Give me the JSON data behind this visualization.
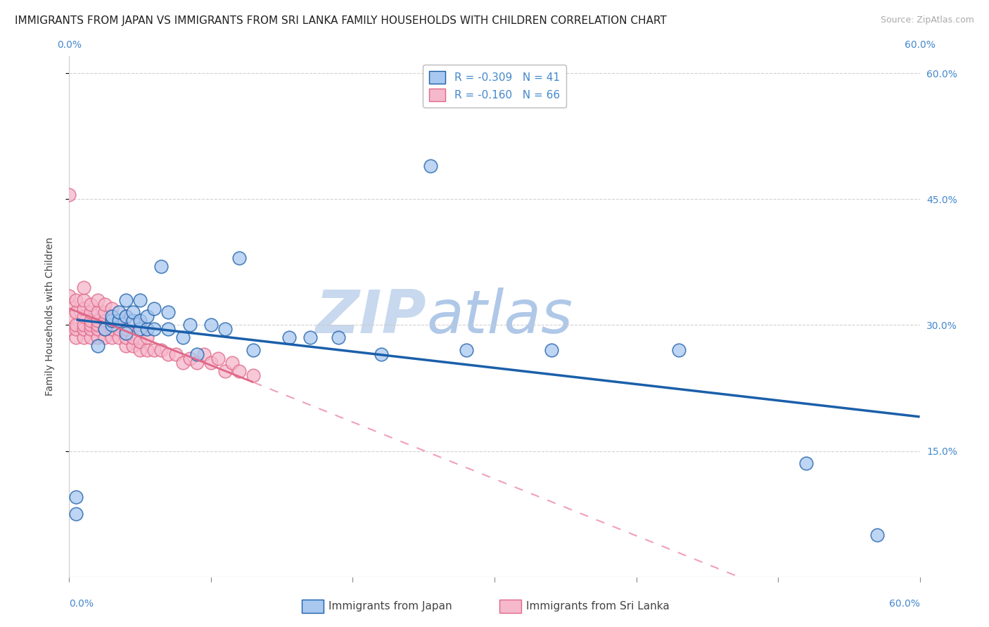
{
  "title": "IMMIGRANTS FROM JAPAN VS IMMIGRANTS FROM SRI LANKA FAMILY HOUSEHOLDS WITH CHILDREN CORRELATION CHART",
  "source": "Source: ZipAtlas.com",
  "ylabel": "Family Households with Children",
  "legend_label1": "R = -0.309   N = 41",
  "legend_label2": "R = -0.160   N = 66",
  "watermark_zip": "ZIP",
  "watermark_atlas": "atlas",
  "legend_xlabel1": "Immigrants from Japan",
  "legend_xlabel2": "Immigrants from Sri Lanka",
  "xlim": [
    0.0,
    0.6
  ],
  "ylim": [
    0.0,
    0.62
  ],
  "ytick_vals": [
    0.15,
    0.3,
    0.45,
    0.6
  ],
  "yticklabels_right": [
    "15.0%",
    "30.0%",
    "45.0%",
    "60.0%"
  ],
  "color_japan": "#a8c8f0",
  "color_japan_line": "#1a5faa",
  "color_srilanka": "#f5b8cc",
  "color_srilanka_line": "#e06888",
  "color_srilanka_line_dashed": "#f0a0b8",
  "japan_x": [
    0.005,
    0.005,
    0.02,
    0.025,
    0.03,
    0.03,
    0.03,
    0.035,
    0.035,
    0.04,
    0.04,
    0.04,
    0.045,
    0.045,
    0.05,
    0.05,
    0.05,
    0.055,
    0.055,
    0.06,
    0.06,
    0.065,
    0.07,
    0.07,
    0.08,
    0.085,
    0.09,
    0.1,
    0.11,
    0.12,
    0.13,
    0.155,
    0.17,
    0.19,
    0.22,
    0.255,
    0.28,
    0.34,
    0.43,
    0.52,
    0.57
  ],
  "japan_y": [
    0.095,
    0.075,
    0.275,
    0.295,
    0.3,
    0.305,
    0.31,
    0.305,
    0.315,
    0.29,
    0.31,
    0.33,
    0.305,
    0.315,
    0.295,
    0.305,
    0.33,
    0.295,
    0.31,
    0.295,
    0.32,
    0.37,
    0.295,
    0.315,
    0.285,
    0.3,
    0.265,
    0.3,
    0.295,
    0.38,
    0.27,
    0.285,
    0.285,
    0.285,
    0.265,
    0.49,
    0.27,
    0.27,
    0.27,
    0.135,
    0.05
  ],
  "srilanka_x": [
    0.0,
    0.0,
    0.0,
    0.0,
    0.0,
    0.005,
    0.005,
    0.005,
    0.005,
    0.005,
    0.01,
    0.01,
    0.01,
    0.01,
    0.01,
    0.01,
    0.01,
    0.015,
    0.015,
    0.015,
    0.015,
    0.015,
    0.015,
    0.02,
    0.02,
    0.02,
    0.02,
    0.02,
    0.02,
    0.025,
    0.025,
    0.025,
    0.025,
    0.025,
    0.03,
    0.03,
    0.03,
    0.03,
    0.035,
    0.035,
    0.035,
    0.04,
    0.04,
    0.04,
    0.04,
    0.045,
    0.045,
    0.05,
    0.05,
    0.05,
    0.055,
    0.055,
    0.06,
    0.065,
    0.07,
    0.075,
    0.08,
    0.085,
    0.09,
    0.095,
    0.1,
    0.105,
    0.11,
    0.115,
    0.12,
    0.13
  ],
  "srilanka_y": [
    0.295,
    0.31,
    0.325,
    0.335,
    0.455,
    0.285,
    0.295,
    0.3,
    0.315,
    0.33,
    0.285,
    0.295,
    0.3,
    0.31,
    0.32,
    0.33,
    0.345,
    0.285,
    0.295,
    0.3,
    0.305,
    0.315,
    0.325,
    0.285,
    0.295,
    0.3,
    0.305,
    0.315,
    0.33,
    0.285,
    0.295,
    0.305,
    0.315,
    0.325,
    0.285,
    0.295,
    0.305,
    0.32,
    0.285,
    0.295,
    0.305,
    0.275,
    0.285,
    0.295,
    0.31,
    0.275,
    0.285,
    0.27,
    0.28,
    0.3,
    0.27,
    0.285,
    0.27,
    0.27,
    0.265,
    0.265,
    0.255,
    0.26,
    0.255,
    0.265,
    0.255,
    0.26,
    0.245,
    0.255,
    0.245,
    0.24
  ],
  "background_color": "#ffffff",
  "grid_color": "#cccccc",
  "title_fontsize": 11,
  "source_fontsize": 9,
  "axis_label_fontsize": 10,
  "legend_fontsize": 11,
  "tick_fontsize": 10,
  "tick_color": "#4488cc"
}
